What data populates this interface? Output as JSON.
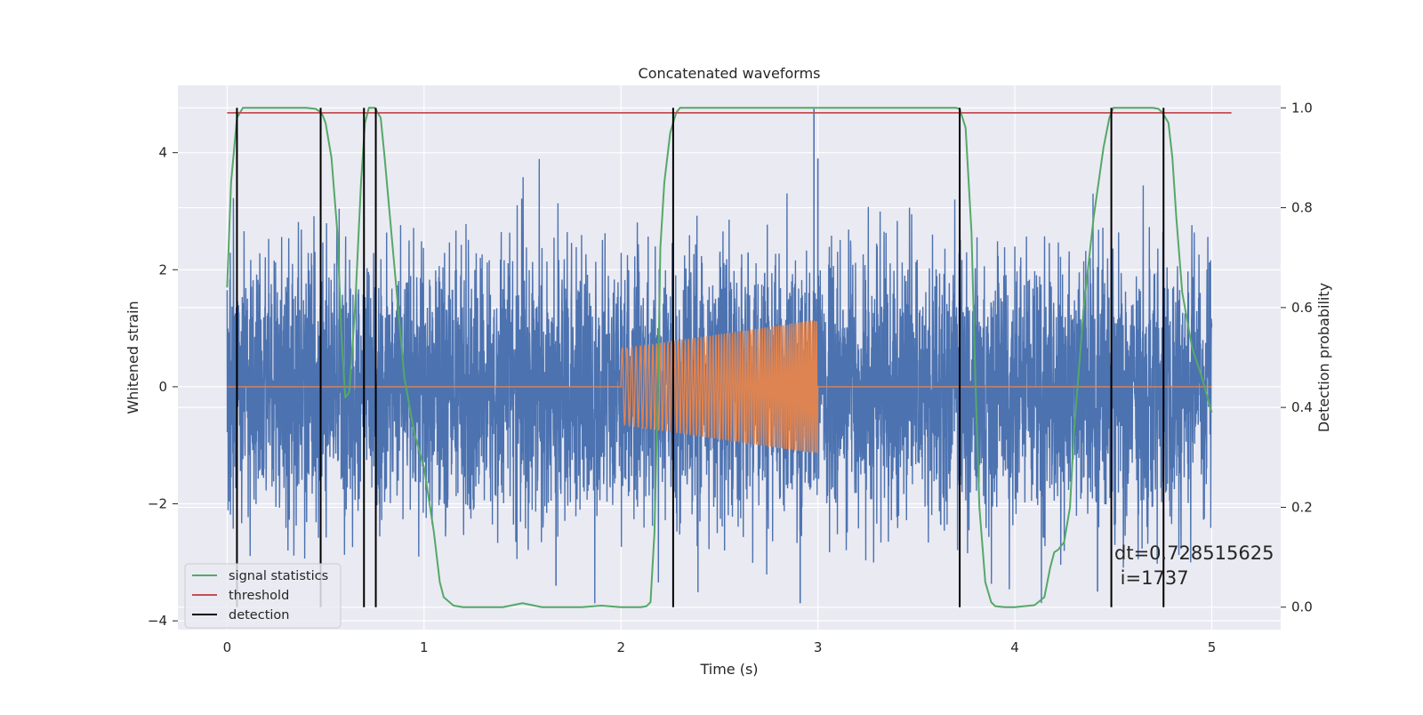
{
  "chart_data": {
    "type": "line",
    "title": "Concatenated waveforms",
    "xlabel": "Time (s)",
    "ylabel_left": "Whitened strain",
    "ylabel_right": "Detection probability",
    "xlim": [
      -0.25,
      5.35
    ],
    "ylim_left": [
      -4.15,
      5.15
    ],
    "ylim_right": [
      -0.045,
      1.045
    ],
    "x_ticks": [
      0,
      1,
      2,
      3,
      4,
      5
    ],
    "x_tick_labels": [
      "0",
      "1",
      "2",
      "3",
      "4",
      "5"
    ],
    "y_left_ticks": [
      -4,
      -2,
      0,
      2,
      4
    ],
    "y_left_tick_labels": [
      "−4",
      "−2",
      "0",
      "2",
      "4"
    ],
    "y_right_ticks": [
      0.0,
      0.2,
      0.4,
      0.6,
      0.8,
      1.0
    ],
    "y_right_tick_labels": [
      "0.0",
      "0.2",
      "0.4",
      "0.6",
      "0.8",
      "1.0"
    ],
    "grid": true,
    "legend_position": "lower-left",
    "legend": [
      {
        "label": "signal statistics",
        "color": "#55a868"
      },
      {
        "label": "threshold",
        "color": "#c44e52"
      },
      {
        "label": "detection",
        "color": "#000000"
      }
    ],
    "series": [
      {
        "kind": "strain_noise",
        "axis": "left",
        "color": "#4c72b0",
        "x_range": [
          0,
          5
        ],
        "typical_amplitude": 1.5,
        "max_value": 4.75,
        "min_value": -3.7
      },
      {
        "kind": "injected_chirp",
        "axis": "left",
        "color": "#dd8452",
        "x_range": [
          0,
          5
        ],
        "active_range": [
          2.0,
          3.0
        ],
        "envelope_start": [
          -0.65,
          0.65
        ],
        "envelope_end": [
          -1.15,
          1.15
        ]
      },
      {
        "name": "signal statistics",
        "axis": "right",
        "color": "#55a868",
        "x": [
          0,
          0.02,
          0.05,
          0.08,
          0.1,
          0.2,
          0.3,
          0.4,
          0.45,
          0.48,
          0.5,
          0.53,
          0.56,
          0.58,
          0.6,
          0.62,
          0.65,
          0.68,
          0.7,
          0.72,
          0.75,
          0.78,
          0.8,
          0.85,
          0.9,
          0.95,
          1.0,
          1.05,
          1.08,
          1.1,
          1.15,
          1.2,
          1.3,
          1.4,
          1.5,
          1.6,
          1.7,
          1.8,
          1.9,
          2.0,
          2.05,
          2.1,
          2.13,
          2.15,
          2.17,
          2.19,
          2.2,
          2.22,
          2.25,
          2.28,
          2.3,
          2.35,
          2.4,
          2.5,
          3.0,
          3.5,
          3.7,
          3.72,
          3.75,
          3.78,
          3.8,
          3.82,
          3.85,
          3.88,
          3.9,
          3.95,
          4.0,
          4.1,
          4.15,
          4.18,
          4.2,
          4.22,
          4.25,
          4.28,
          4.3,
          4.35,
          4.4,
          4.45,
          4.48,
          4.5,
          4.55,
          4.6,
          4.65,
          4.7,
          4.73,
          4.75,
          4.78,
          4.8,
          4.82,
          4.85,
          4.9,
          4.95,
          5.0
        ],
        "values": [
          0.64,
          0.85,
          0.98,
          1.0,
          1.0,
          1.0,
          1.0,
          1.0,
          0.998,
          0.99,
          0.97,
          0.9,
          0.75,
          0.55,
          0.42,
          0.43,
          0.6,
          0.85,
          0.97,
          1.0,
          1.0,
          0.98,
          0.9,
          0.68,
          0.46,
          0.35,
          0.28,
          0.15,
          0.05,
          0.02,
          0.003,
          0.0,
          0.0,
          0.0,
          0.008,
          0.0,
          0.0,
          0.0,
          0.003,
          0.0,
          0.0,
          0.0,
          0.002,
          0.01,
          0.15,
          0.48,
          0.72,
          0.85,
          0.95,
          0.99,
          1.0,
          1.0,
          1.0,
          1.0,
          1.0,
          1.0,
          1.0,
          0.998,
          0.96,
          0.75,
          0.45,
          0.2,
          0.05,
          0.01,
          0.002,
          0.0,
          0.0,
          0.004,
          0.02,
          0.08,
          0.11,
          0.115,
          0.13,
          0.2,
          0.35,
          0.6,
          0.78,
          0.92,
          0.98,
          1.0,
          1.0,
          1.0,
          1.0,
          1.0,
          0.998,
          0.99,
          0.97,
          0.9,
          0.78,
          0.63,
          0.52,
          0.46,
          0.39
        ]
      },
      {
        "name": "threshold",
        "axis": "right",
        "color": "#c44e52",
        "x": [
          0,
          5.1
        ],
        "values": [
          0.99,
          0.99
        ]
      },
      {
        "name": "detection",
        "axis": "right",
        "color": "#000000",
        "x": [
          0.05,
          0.475,
          0.695,
          0.755,
          2.265,
          3.72,
          4.49,
          4.755
        ],
        "range": [
          0.0,
          1.0
        ]
      }
    ],
    "annotations": [
      "dt=0.728515625",
      " i=1737"
    ]
  }
}
